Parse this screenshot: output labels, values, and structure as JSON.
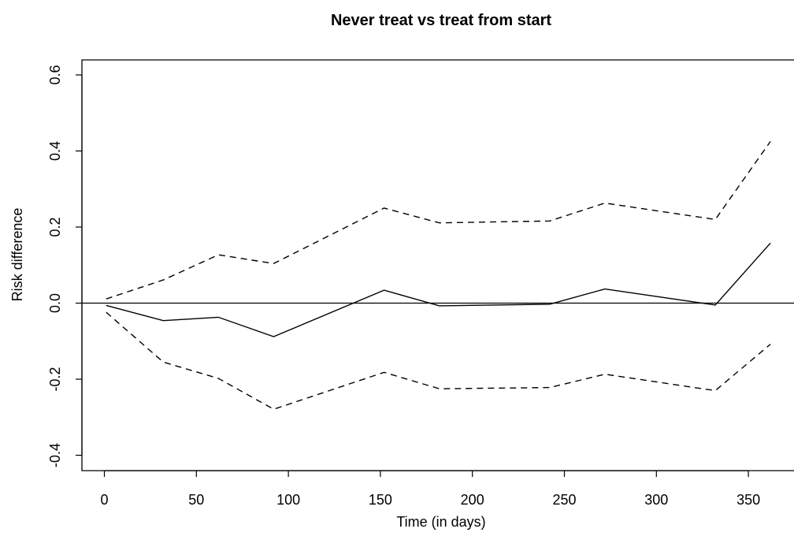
{
  "chart_data": {
    "type": "line",
    "title": "Never treat vs  treat from start",
    "xlabel": "Time (in days)",
    "ylabel": "Risk difference",
    "xlim": [
      0,
      365
    ],
    "ylim": [
      -0.4,
      0.6
    ],
    "xticks": [
      "0",
      "50",
      "100",
      "150",
      "200",
      "250",
      "300",
      "350"
    ],
    "yticks": [
      "-0.4",
      "-0.2",
      "0.0",
      "0.2",
      "0.4",
      "0.6"
    ],
    "grid": false,
    "reference_line_y": 0,
    "x": [
      1,
      32,
      62,
      92,
      152,
      182,
      242,
      272,
      332,
      362
    ],
    "series": [
      {
        "style": "solid",
        "values": [
          -0.006,
          -0.046,
          -0.037,
          -0.088,
          0.034,
          -0.007,
          -0.003,
          0.037,
          -0.005,
          0.158
        ]
      },
      {
        "style": "dashed",
        "values": [
          0.011,
          0.061,
          0.127,
          0.104,
          0.25,
          0.211,
          0.216,
          0.263,
          0.22,
          0.425
        ]
      },
      {
        "style": "dashed",
        "values": [
          -0.024,
          -0.155,
          -0.198,
          -0.279,
          -0.182,
          -0.225,
          -0.222,
          -0.187,
          -0.23,
          -0.108
        ]
      }
    ]
  }
}
